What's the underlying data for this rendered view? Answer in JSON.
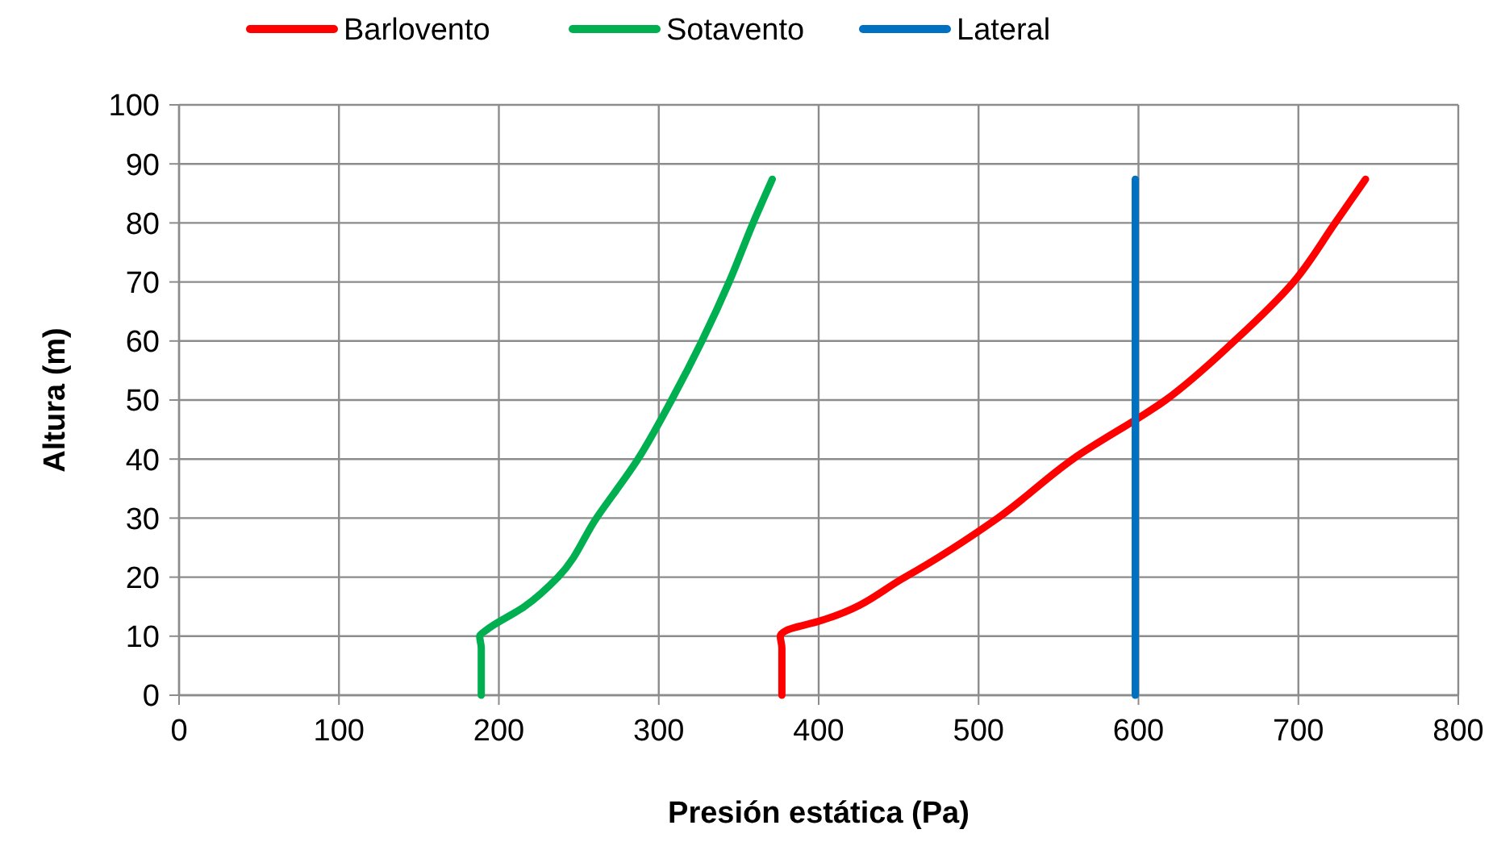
{
  "chart_data": {
    "type": "line",
    "xlabel": "Presión estática (Pa)",
    "ylabel": "Altura (m)",
    "xlim": [
      0,
      800
    ],
    "xticks": [
      0,
      100,
      200,
      300,
      400,
      500,
      600,
      700,
      800
    ],
    "ylim": [
      0,
      100
    ],
    "yticks": [
      0,
      10,
      20,
      30,
      40,
      50,
      60,
      70,
      80,
      90,
      100
    ],
    "grid": true,
    "legend": "top",
    "marker": "none",
    "line_style": "solid",
    "series": [
      {
        "name": "Barlovento",
        "color": "#ff0000",
        "x": [
          377,
          377,
          376,
          380,
          401,
          454,
          512,
          559,
          617,
          660,
          697,
          723,
          742
        ],
        "values": [
          0,
          8,
          10,
          11,
          12.6,
          20,
          30,
          40,
          50,
          60,
          70,
          80,
          87.4
        ]
      },
      {
        "name": "Sotavento",
        "color": "#00b050",
        "x": [
          189,
          189,
          188,
          192,
          216,
          237,
          261,
          287,
          308,
          327,
          344,
          359,
          371
        ],
        "values": [
          0,
          8,
          10,
          11,
          15,
          20,
          30,
          40,
          50,
          60,
          70,
          80,
          87.4
        ]
      },
      {
        "name": "Lateral",
        "color": "#0070c0",
        "x": [
          598,
          598
        ],
        "values": [
          0,
          87.4
        ]
      }
    ]
  }
}
